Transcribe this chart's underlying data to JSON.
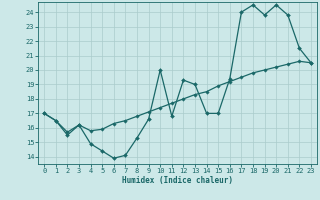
{
  "xlabel": "Humidex (Indice chaleur)",
  "bg_color": "#cce8e8",
  "grid_color": "#aacccc",
  "line_color": "#1a6868",
  "xlim": [
    -0.5,
    23.5
  ],
  "ylim": [
    13.5,
    24.7
  ],
  "xticks": [
    0,
    1,
    2,
    3,
    4,
    5,
    6,
    7,
    8,
    9,
    10,
    11,
    12,
    13,
    14,
    15,
    16,
    17,
    18,
    19,
    20,
    21,
    22,
    23
  ],
  "yticks": [
    14,
    15,
    16,
    17,
    18,
    19,
    20,
    21,
    22,
    23,
    24
  ],
  "line1_x": [
    0,
    1,
    2,
    3,
    4,
    5,
    6,
    7,
    8,
    9,
    10,
    11,
    12,
    13,
    14,
    15,
    16,
    17,
    18,
    19,
    20,
    21,
    22,
    23
  ],
  "line1_y": [
    17.0,
    16.5,
    15.5,
    16.2,
    14.9,
    14.4,
    13.9,
    14.1,
    15.3,
    16.6,
    20.0,
    16.8,
    19.3,
    19.0,
    17.0,
    17.0,
    19.4,
    24.0,
    24.5,
    23.8,
    24.5,
    23.8,
    21.5,
    20.5
  ],
  "line2_x": [
    0,
    1,
    2,
    3,
    4,
    5,
    6,
    7,
    8,
    9,
    10,
    11,
    12,
    13,
    14,
    15,
    16,
    17,
    18,
    19,
    20,
    21,
    22,
    23
  ],
  "line2_y": [
    17.0,
    16.5,
    15.7,
    16.2,
    15.8,
    15.9,
    16.3,
    16.5,
    16.8,
    17.1,
    17.4,
    17.7,
    18.0,
    18.3,
    18.5,
    18.9,
    19.2,
    19.5,
    19.8,
    20.0,
    20.2,
    20.4,
    20.6,
    20.5
  ]
}
